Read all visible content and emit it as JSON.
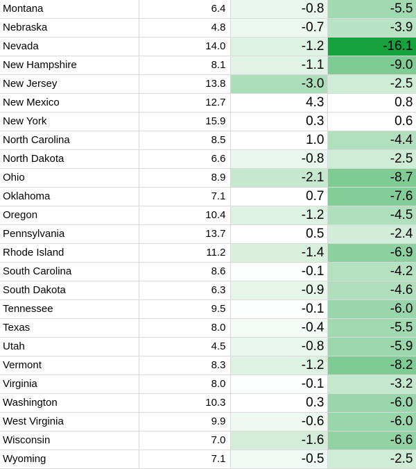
{
  "chart_data": {
    "type": "table",
    "colors": {
      "scale_low": "#ffffff",
      "scale_high": "#16a13c",
      "gridline": "#d9d9d9"
    },
    "rows": [
      {
        "state": "Montana",
        "value": "6.4",
        "change_1": "-0.8",
        "change_2": "-5.5"
      },
      {
        "state": "Nebraska",
        "value": "4.8",
        "change_1": "-0.7",
        "change_2": "-3.9"
      },
      {
        "state": "Nevada",
        "value": "14.0",
        "change_1": "-1.2",
        "change_2": "-16.1"
      },
      {
        "state": "New Hampshire",
        "value": "8.1",
        "change_1": "-1.1",
        "change_2": "-9.0"
      },
      {
        "state": "New Jersey",
        "value": "13.8",
        "change_1": "-3.0",
        "change_2": "-2.5"
      },
      {
        "state": "New Mexico",
        "value": "12.7",
        "change_1": "4.3",
        "change_2": "0.8"
      },
      {
        "state": "New York",
        "value": "15.9",
        "change_1": "0.3",
        "change_2": "0.6"
      },
      {
        "state": "North Carolina",
        "value": "8.5",
        "change_1": "1.0",
        "change_2": "-4.4"
      },
      {
        "state": "North Dakota",
        "value": "6.6",
        "change_1": "-0.8",
        "change_2": "-2.5"
      },
      {
        "state": "Ohio",
        "value": "8.9",
        "change_1": "-2.1",
        "change_2": "-8.7"
      },
      {
        "state": "Oklahoma",
        "value": "7.1",
        "change_1": "0.7",
        "change_2": "-7.6"
      },
      {
        "state": "Oregon",
        "value": "10.4",
        "change_1": "-1.2",
        "change_2": "-4.5"
      },
      {
        "state": "Pennsylvania",
        "value": "13.7",
        "change_1": "0.5",
        "change_2": "-2.4"
      },
      {
        "state": "Rhode Island",
        "value": "11.2",
        "change_1": "-1.4",
        "change_2": "-6.9"
      },
      {
        "state": "South Carolina",
        "value": "8.6",
        "change_1": "-0.1",
        "change_2": "-4.2"
      },
      {
        "state": "South Dakota",
        "value": "6.3",
        "change_1": "-0.9",
        "change_2": "-4.6"
      },
      {
        "state": "Tennessee",
        "value": "9.5",
        "change_1": "-0.1",
        "change_2": "-6.0"
      },
      {
        "state": "Texas",
        "value": "8.0",
        "change_1": "-0.4",
        "change_2": "-5.5"
      },
      {
        "state": "Utah",
        "value": "4.5",
        "change_1": "-0.8",
        "change_2": "-5.9"
      },
      {
        "state": "Vermont",
        "value": "8.3",
        "change_1": "-1.2",
        "change_2": "-8.2"
      },
      {
        "state": "Virginia",
        "value": "8.0",
        "change_1": "-0.1",
        "change_2": "-3.2"
      },
      {
        "state": "Washington",
        "value": "10.3",
        "change_1": "0.3",
        "change_2": "-6.0"
      },
      {
        "state": "West Virginia",
        "value": "9.9",
        "change_1": "-0.6",
        "change_2": "-6.0"
      },
      {
        "state": "Wisconsin",
        "value": "7.0",
        "change_1": "-1.6",
        "change_2": "-6.6"
      },
      {
        "state": "Wyoming",
        "value": "7.1",
        "change_1": "-0.5",
        "change_2": "-2.5"
      }
    ]
  }
}
